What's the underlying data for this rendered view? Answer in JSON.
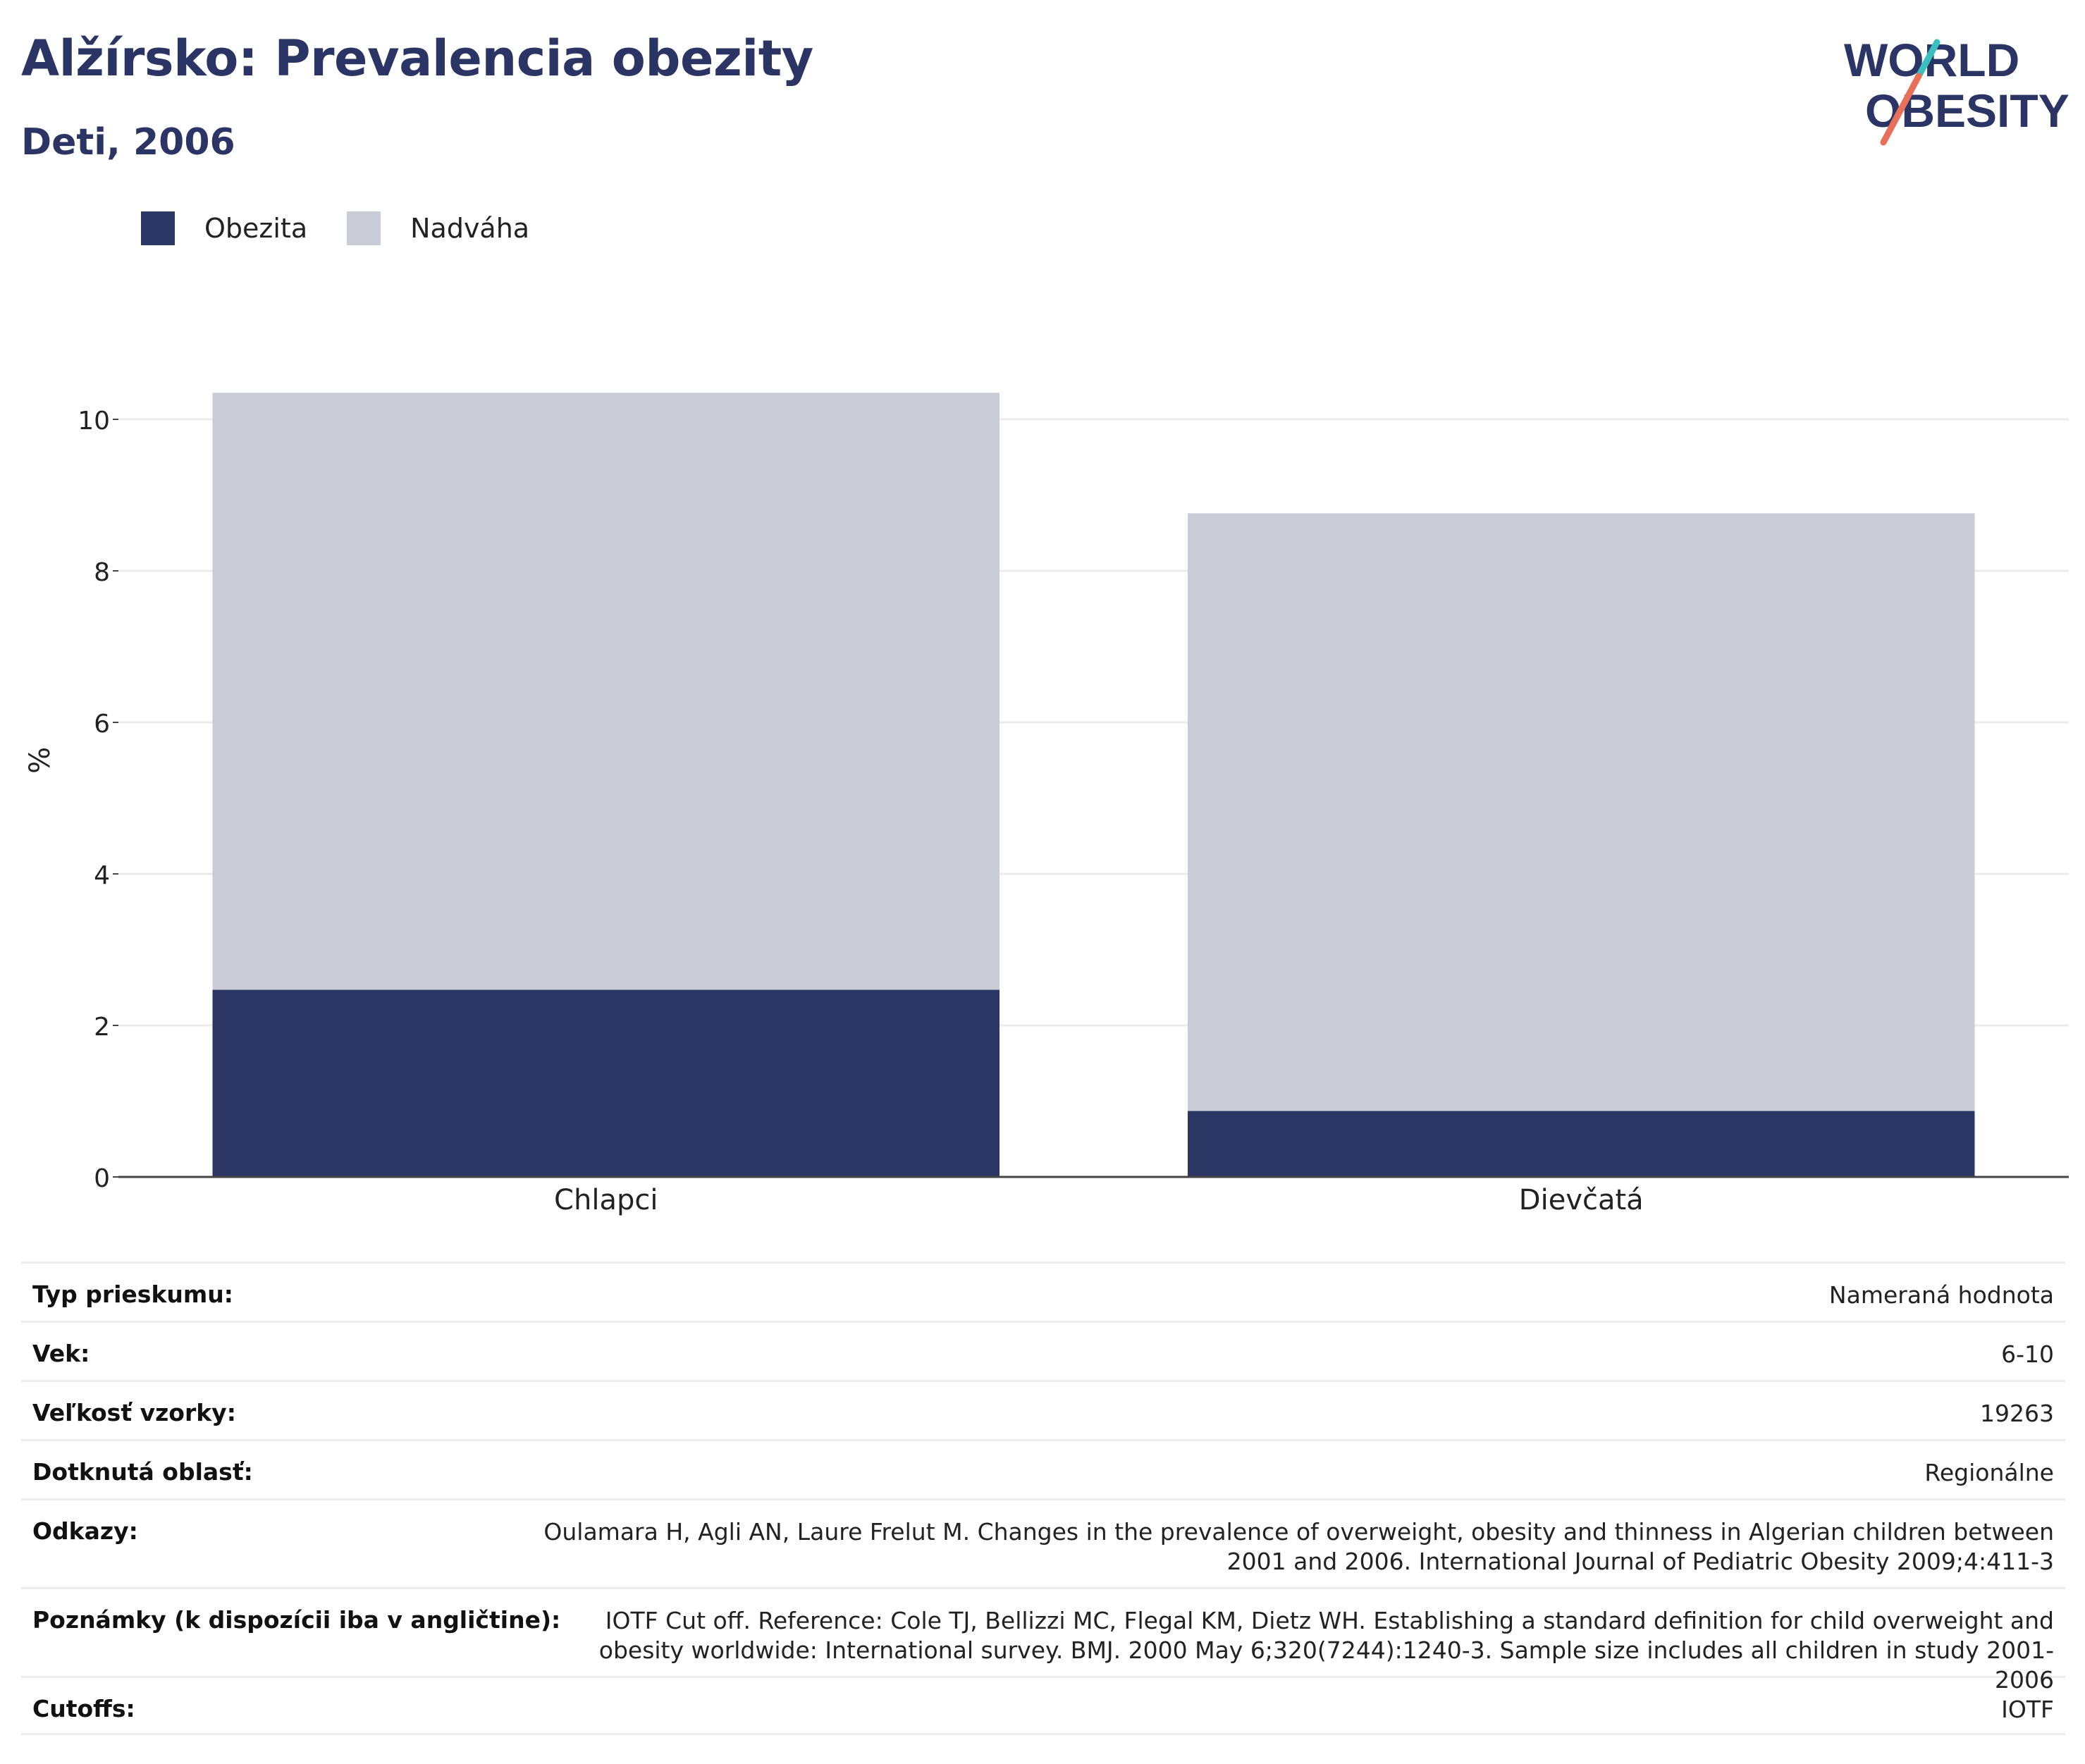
{
  "header": {
    "title": "Alžírsko: Prevalencia obezity",
    "subtitle": "Deti, 2006",
    "logo_text": [
      "WORLD",
      "OBESITY"
    ]
  },
  "legend": [
    {
      "label": "Obezita",
      "color": "#2b3665"
    },
    {
      "label": "Nadváha",
      "color": "#c9cbd6"
    }
  ],
  "chart_data": {
    "type": "bar",
    "stacked": true,
    "categories": [
      "Chlapci",
      "Dievčatá"
    ],
    "series": [
      {
        "name": "Obezita",
        "values": [
          2.47,
          0.87
        ],
        "color": "#2b3665"
      },
      {
        "name": "Nadváha",
        "values": [
          7.88,
          7.89
        ],
        "color": "#c9cbd6"
      }
    ],
    "ylabel": "%",
    "ylim": [
      0,
      11
    ],
    "yticks": [
      0,
      2,
      4,
      6,
      8,
      10
    ],
    "grid": true,
    "legend_position": "top-left"
  },
  "info": {
    "rows": [
      {
        "label": "Typ prieskumu:",
        "value": "Nameraná hodnota"
      },
      {
        "label": "Vek:",
        "value": "6-10"
      },
      {
        "label": "Veľkosť vzorky:",
        "value": "19263"
      },
      {
        "label": "Dotknutá oblasť:",
        "value": "Regionálne"
      },
      {
        "label": "Odkazy:",
        "value": "Oulamara H, Agli AN, Laure Frelut M. Changes in the prevalence of overweight, obesity and thinness in Algerian children between 2001 and 2006. International Journal of Pediatric Obesity 2009;4:411-3"
      },
      {
        "label": "Poznámky (k dispozícii iba v angličtine):",
        "value": "IOTF Cut off. Reference: Cole TJ, Bellizzi MC, Flegal KM, Dietz WH. Establishing a standard definition for child overweight and obesity worldwide: International survey. BMJ. 2000 May 6;320(7244):1240-3. Sample size includes all children in study 2001-2006"
      },
      {
        "label": "Cutoffs:",
        "value": "IOTF"
      }
    ]
  }
}
